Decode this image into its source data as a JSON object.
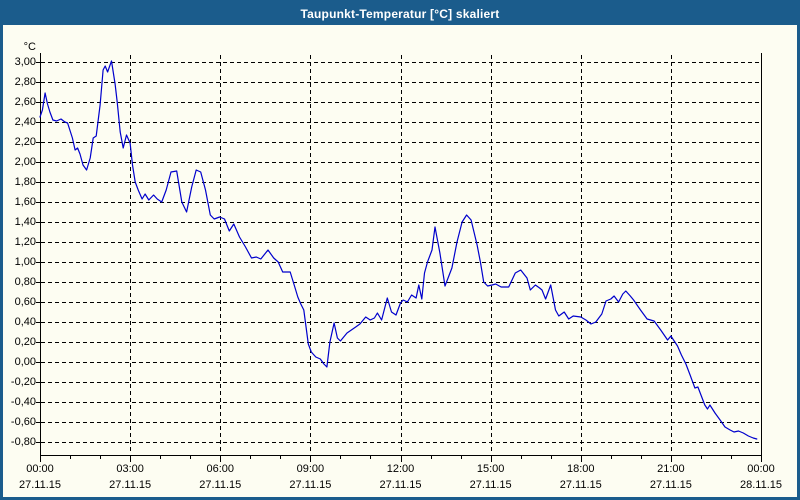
{
  "window": {
    "title": "Taupunkt-Temperatur [°C] skaliert"
  },
  "colors": {
    "frame": "#1b5c8c",
    "titlebar_bg": "#1b5c8c",
    "titlebar_text": "#ffffff",
    "plot_background": "#fdfdf2",
    "grid": "#000000",
    "axis": "#000000",
    "series_line": "#0000cc",
    "label_text": "#000000"
  },
  "chart_data": {
    "type": "line",
    "title": "Taupunkt-Temperatur [°C] skaliert",
    "xlabel": "",
    "ylabel": "°C",
    "ylim": [
      -0.8,
      3.0
    ],
    "y_tick_step": 0.2,
    "y_tick_labels": [
      "3,00",
      "2,80",
      "2,60",
      "2,40",
      "2,20",
      "2,00",
      "1,80",
      "1,60",
      "1,40",
      "1,20",
      "1,00",
      "0,80",
      "0,60",
      "0,40",
      "0,20",
      "0,00",
      "-0,20",
      "-0,40",
      "-0,60",
      "-0,80"
    ],
    "x_range_hours": [
      0,
      24
    ],
    "x_minor_tick_hours": 1,
    "x_major_tick_hours": 3,
    "grid": "dashed",
    "legend": "none",
    "x_major_ticks": [
      {
        "time": "00:00",
        "date": "27.11.15"
      },
      {
        "time": "03:00",
        "date": "27.11.15"
      },
      {
        "time": "06:00",
        "date": "27.11.15"
      },
      {
        "time": "09:00",
        "date": "27.11.15"
      },
      {
        "time": "12:00",
        "date": "27.11.15"
      },
      {
        "time": "15:00",
        "date": "27.11.15"
      },
      {
        "time": "18:00",
        "date": "27.11.15"
      },
      {
        "time": "21:00",
        "date": "27.11.15"
      },
      {
        "time": "00:00",
        "date": "28.11.15"
      }
    ],
    "series": [
      {
        "name": "Taupunkt-Temperatur",
        "color": "#0000cc",
        "points": [
          [
            0.0,
            2.45
          ],
          [
            0.08,
            2.52
          ],
          [
            0.17,
            2.69
          ],
          [
            0.25,
            2.58
          ],
          [
            0.33,
            2.5
          ],
          [
            0.43,
            2.42
          ],
          [
            0.55,
            2.41
          ],
          [
            0.7,
            2.43
          ],
          [
            0.83,
            2.4
          ],
          [
            0.92,
            2.39
          ],
          [
            1.08,
            2.24
          ],
          [
            1.17,
            2.12
          ],
          [
            1.25,
            2.14
          ],
          [
            1.33,
            2.08
          ],
          [
            1.43,
            1.97
          ],
          [
            1.55,
            1.92
          ],
          [
            1.67,
            2.04
          ],
          [
            1.77,
            2.24
          ],
          [
            1.87,
            2.26
          ],
          [
            2.0,
            2.57
          ],
          [
            2.1,
            2.92
          ],
          [
            2.17,
            2.96
          ],
          [
            2.25,
            2.9
          ],
          [
            2.38,
            3.01
          ],
          [
            2.5,
            2.78
          ],
          [
            2.57,
            2.6
          ],
          [
            2.67,
            2.3
          ],
          [
            2.77,
            2.14
          ],
          [
            2.88,
            2.27
          ],
          [
            3.0,
            2.19
          ],
          [
            3.08,
            1.97
          ],
          [
            3.17,
            1.8
          ],
          [
            3.27,
            1.72
          ],
          [
            3.4,
            1.63
          ],
          [
            3.5,
            1.68
          ],
          [
            3.62,
            1.62
          ],
          [
            3.78,
            1.67
          ],
          [
            3.9,
            1.63
          ],
          [
            4.05,
            1.6
          ],
          [
            4.2,
            1.72
          ],
          [
            4.36,
            1.9
          ],
          [
            4.55,
            1.91
          ],
          [
            4.72,
            1.6
          ],
          [
            4.88,
            1.5
          ],
          [
            5.05,
            1.75
          ],
          [
            5.2,
            1.92
          ],
          [
            5.35,
            1.9
          ],
          [
            5.51,
            1.72
          ],
          [
            5.67,
            1.47
          ],
          [
            5.8,
            1.43
          ],
          [
            5.98,
            1.45
          ],
          [
            6.14,
            1.43
          ],
          [
            6.3,
            1.31
          ],
          [
            6.45,
            1.38
          ],
          [
            6.64,
            1.25
          ],
          [
            6.84,
            1.15
          ],
          [
            7.04,
            1.04
          ],
          [
            7.2,
            1.05
          ],
          [
            7.35,
            1.03
          ],
          [
            7.59,
            1.12
          ],
          [
            7.78,
            1.04
          ],
          [
            7.93,
            1.0
          ],
          [
            8.08,
            0.9
          ],
          [
            8.33,
            0.9
          ],
          [
            8.48,
            0.75
          ],
          [
            8.58,
            0.65
          ],
          [
            8.68,
            0.58
          ],
          [
            8.78,
            0.52
          ],
          [
            8.93,
            0.18
          ],
          [
            9.03,
            0.1
          ],
          [
            9.18,
            0.05
          ],
          [
            9.33,
            0.03
          ],
          [
            9.45,
            -0.02
          ],
          [
            9.55,
            -0.05
          ],
          [
            9.65,
            0.2
          ],
          [
            9.79,
            0.39
          ],
          [
            9.9,
            0.24
          ],
          [
            10.0,
            0.21
          ],
          [
            10.22,
            0.29
          ],
          [
            10.51,
            0.35
          ],
          [
            10.65,
            0.38
          ],
          [
            10.84,
            0.45
          ],
          [
            10.99,
            0.42
          ],
          [
            11.13,
            0.44
          ],
          [
            11.23,
            0.49
          ],
          [
            11.37,
            0.42
          ],
          [
            11.56,
            0.64
          ],
          [
            11.7,
            0.5
          ],
          [
            11.85,
            0.47
          ],
          [
            12.0,
            0.59
          ],
          [
            12.09,
            0.62
          ],
          [
            12.23,
            0.6
          ],
          [
            12.37,
            0.67
          ],
          [
            12.52,
            0.64
          ],
          [
            12.61,
            0.77
          ],
          [
            12.71,
            0.63
          ],
          [
            12.8,
            0.89
          ],
          [
            12.9,
            1.0
          ],
          [
            13.05,
            1.12
          ],
          [
            13.15,
            1.35
          ],
          [
            13.31,
            1.09
          ],
          [
            13.48,
            0.76
          ],
          [
            13.71,
            0.94
          ],
          [
            13.88,
            1.2
          ],
          [
            14.05,
            1.4
          ],
          [
            14.2,
            1.47
          ],
          [
            14.35,
            1.42
          ],
          [
            14.55,
            1.17
          ],
          [
            14.66,
            1.0
          ],
          [
            14.77,
            0.8
          ],
          [
            14.9,
            0.76
          ],
          [
            15.05,
            0.77
          ],
          [
            15.17,
            0.78
          ],
          [
            15.35,
            0.75
          ],
          [
            15.6,
            0.75
          ],
          [
            15.82,
            0.89
          ],
          [
            16.0,
            0.92
          ],
          [
            16.21,
            0.84
          ],
          [
            16.32,
            0.72
          ],
          [
            16.49,
            0.77
          ],
          [
            16.63,
            0.74
          ],
          [
            16.71,
            0.72
          ],
          [
            16.83,
            0.63
          ],
          [
            17.0,
            0.77
          ],
          [
            17.16,
            0.52
          ],
          [
            17.27,
            0.46
          ],
          [
            17.45,
            0.5
          ],
          [
            17.6,
            0.43
          ],
          [
            17.75,
            0.46
          ],
          [
            18.0,
            0.45
          ],
          [
            18.17,
            0.42
          ],
          [
            18.34,
            0.38
          ],
          [
            18.5,
            0.4
          ],
          [
            18.7,
            0.48
          ],
          [
            18.84,
            0.61
          ],
          [
            19.0,
            0.63
          ],
          [
            19.11,
            0.66
          ],
          [
            19.26,
            0.6
          ],
          [
            19.4,
            0.68
          ],
          [
            19.5,
            0.71
          ],
          [
            19.65,
            0.66
          ],
          [
            19.76,
            0.62
          ],
          [
            19.99,
            0.52
          ],
          [
            20.21,
            0.43
          ],
          [
            20.44,
            0.41
          ],
          [
            20.66,
            0.32
          ],
          [
            20.89,
            0.22
          ],
          [
            21.0,
            0.26
          ],
          [
            21.22,
            0.16
          ],
          [
            21.35,
            0.07
          ],
          [
            21.5,
            -0.02
          ],
          [
            21.64,
            -0.13
          ],
          [
            21.8,
            -0.26
          ],
          [
            21.9,
            -0.25
          ],
          [
            22.13,
            -0.43
          ],
          [
            22.22,
            -0.47
          ],
          [
            22.3,
            -0.43
          ],
          [
            22.47,
            -0.51
          ],
          [
            22.64,
            -0.58
          ],
          [
            22.8,
            -0.65
          ],
          [
            22.97,
            -0.68
          ],
          [
            23.1,
            -0.7
          ],
          [
            23.25,
            -0.69
          ],
          [
            23.41,
            -0.71
          ],
          [
            23.58,
            -0.74
          ],
          [
            23.74,
            -0.76
          ],
          [
            23.86,
            -0.77
          ]
        ]
      }
    ]
  }
}
